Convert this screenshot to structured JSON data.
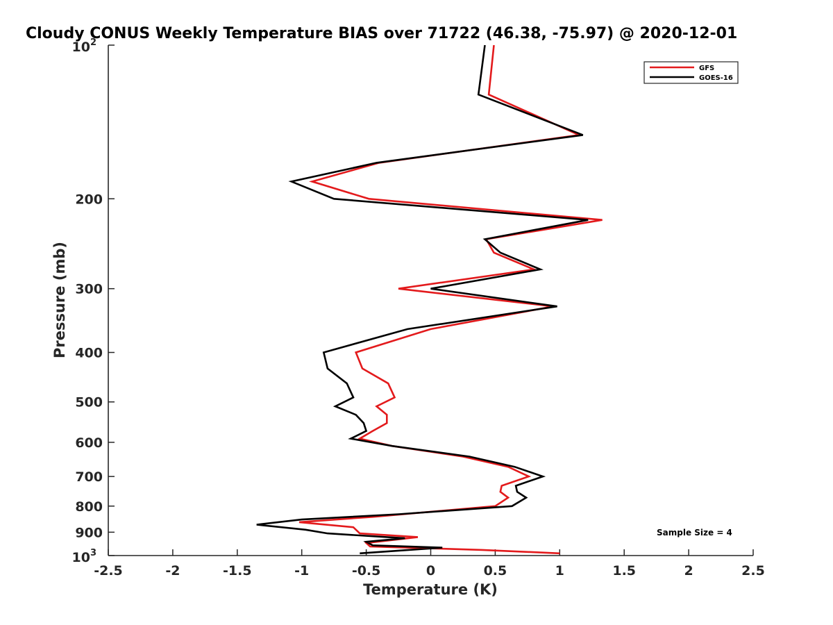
{
  "chart_data": {
    "type": "line",
    "title": "Cloudy CONUS Weekly Temperature BIAS over 71722 (46.38, -75.97) @ 2020-12-01",
    "xlabel": "Temperature (K)",
    "ylabel": "Pressure (mb)",
    "xlim": [
      -2.5,
      2.5
    ],
    "ylim": [
      1000,
      100
    ],
    "y_scale": "log",
    "y_reversed": true,
    "grid": false,
    "legend_position": "top-right",
    "x_ticks": [
      "-2.5",
      "-2",
      "-1.5",
      "-1",
      "-0.5",
      "0",
      "0.5",
      "1",
      "1.5",
      "2",
      "2.5"
    ],
    "x_tick_values": [
      -2.5,
      -2,
      -1.5,
      -1,
      -0.5,
      0,
      0.5,
      1,
      1.5,
      2,
      2.5
    ],
    "y_ticks": [
      {
        "value": 100,
        "base": "10",
        "sup": "2"
      },
      {
        "value": 200,
        "label": "200"
      },
      {
        "value": 300,
        "label": "300"
      },
      {
        "value": 400,
        "label": "400"
      },
      {
        "value": 500,
        "label": "500"
      },
      {
        "value": 600,
        "label": "600"
      },
      {
        "value": 700,
        "label": "700"
      },
      {
        "value": 800,
        "label": "800"
      },
      {
        "value": 900,
        "label": "900"
      },
      {
        "value": 1000,
        "base": "10",
        "sup": "3"
      }
    ],
    "annotation": "Sample Size = 4",
    "series": [
      {
        "name": "GFS",
        "color": "#e31a1c",
        "points": [
          [
            0.49,
            100
          ],
          [
            0.45,
            125
          ],
          [
            1.15,
            150
          ],
          [
            -0.4,
            170
          ],
          [
            -0.92,
            185
          ],
          [
            -0.48,
            200
          ],
          [
            1.33,
            220
          ],
          [
            0.43,
            240
          ],
          [
            0.49,
            255
          ],
          [
            0.8,
            275
          ],
          [
            -0.25,
            300
          ],
          [
            0.95,
            325
          ],
          [
            0.0,
            360
          ],
          [
            -0.58,
            400
          ],
          [
            -0.53,
            430
          ],
          [
            -0.33,
            460
          ],
          [
            -0.28,
            490
          ],
          [
            -0.42,
            510
          ],
          [
            -0.34,
            530
          ],
          [
            -0.34,
            550
          ],
          [
            -0.45,
            570
          ],
          [
            -0.55,
            590
          ],
          [
            -0.3,
            610
          ],
          [
            0.25,
            640
          ],
          [
            0.6,
            670
          ],
          [
            0.76,
            700
          ],
          [
            0.55,
            730
          ],
          [
            0.54,
            750
          ],
          [
            0.6,
            770
          ],
          [
            0.5,
            800
          ],
          [
            -0.45,
            840
          ],
          [
            -1.02,
            860
          ],
          [
            -0.6,
            880
          ],
          [
            -0.55,
            905
          ],
          [
            -0.1,
            920
          ],
          [
            -0.5,
            945
          ],
          [
            -0.47,
            960
          ],
          [
            0.4,
            975
          ],
          [
            1.0,
            990
          ]
        ]
      },
      {
        "name": "GOES-16",
        "color": "#000000",
        "points": [
          [
            0.42,
            100
          ],
          [
            0.37,
            125
          ],
          [
            1.18,
            150
          ],
          [
            -0.42,
            170
          ],
          [
            -1.08,
            185
          ],
          [
            -0.75,
            200
          ],
          [
            1.22,
            220
          ],
          [
            0.42,
            240
          ],
          [
            0.54,
            255
          ],
          [
            0.85,
            275
          ],
          [
            0.0,
            300
          ],
          [
            0.98,
            325
          ],
          [
            -0.18,
            360
          ],
          [
            -0.83,
            400
          ],
          [
            -0.8,
            430
          ],
          [
            -0.65,
            460
          ],
          [
            -0.6,
            490
          ],
          [
            -0.74,
            510
          ],
          [
            -0.58,
            530
          ],
          [
            -0.52,
            550
          ],
          [
            -0.5,
            570
          ],
          [
            -0.62,
            590
          ],
          [
            -0.3,
            610
          ],
          [
            0.3,
            640
          ],
          [
            0.65,
            670
          ],
          [
            0.87,
            700
          ],
          [
            0.66,
            730
          ],
          [
            0.67,
            750
          ],
          [
            0.74,
            770
          ],
          [
            0.63,
            800
          ],
          [
            -0.25,
            830
          ],
          [
            -1.0,
            850
          ],
          [
            -1.35,
            870
          ],
          [
            -0.97,
            890
          ],
          [
            -0.8,
            905
          ],
          [
            -0.2,
            925
          ],
          [
            -0.5,
            940
          ],
          [
            -0.45,
            955
          ],
          [
            0.09,
            965
          ],
          [
            -0.55,
            990
          ]
        ]
      }
    ]
  }
}
